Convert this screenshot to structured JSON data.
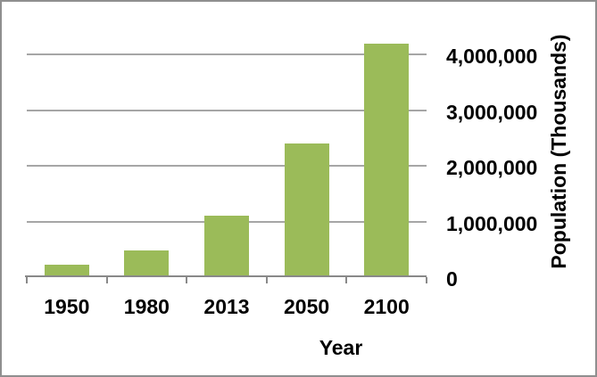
{
  "chart_data": {
    "type": "bar",
    "categories": [
      "1950",
      "1980",
      "2013",
      "2050",
      "2100"
    ],
    "values": [
      230000,
      480000,
      1100000,
      2400000,
      4200000
    ],
    "xlabel": "Year",
    "ylabel": "Population (Thousands)",
    "ylim": [
      0,
      4500000
    ],
    "yticks": [
      0,
      1000000,
      2000000,
      3000000,
      4000000
    ],
    "ytick_labels": [
      "0",
      "1,000,000",
      "2,000,000",
      "3,000,000",
      "4,000,000"
    ],
    "grid": true,
    "legend": false,
    "axis_label_side": "right",
    "colors": {
      "bar": "#9BBB59",
      "gridline": "#A6A6A6",
      "axis": "#898989",
      "text": "#000000",
      "frame_border": "#8F8F8F"
    }
  }
}
